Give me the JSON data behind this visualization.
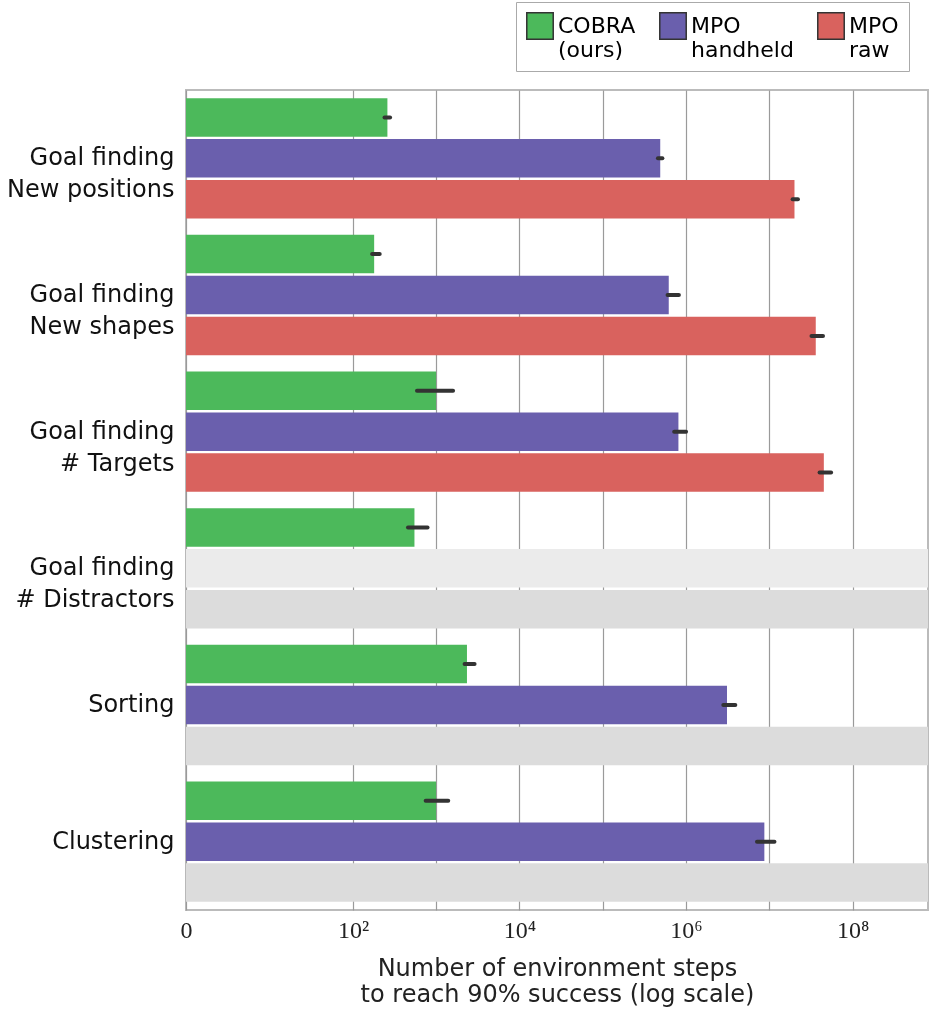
{
  "chart_data": {
    "type": "bar",
    "orientation": "horizontal",
    "log": "x",
    "xlabel": "Number of environment steps\nto reach 90% success (log scale)",
    "categories": [
      "Goal finding\nNew positions",
      "Goal finding\nNew shapes",
      "Goal finding\n# Targets",
      "Goal finding\n# Distractors",
      "Sorting",
      "Clustering"
    ],
    "series": [
      {
        "name": "COBRA\n(ours)",
        "color": "#4cb95b",
        "values": [
          260,
          180,
          1000,
          550,
          2350,
          1000
        ],
        "errors": [
          [
            240,
            280
          ],
          [
            170,
            210
          ],
          [
            590,
            1600
          ],
          [
            460,
            790
          ],
          [
            2200,
            2900
          ],
          [
            750,
            1400
          ]
        ]
      },
      {
        "name": "MPO\nhandheld",
        "color": "#6a5fad",
        "values": [
          490000,
          620000,
          810000,
          800000000,
          3100000,
          8700000
        ],
        "colors": [
          "#6a5fad",
          "#6a5fad",
          "#6a5fad",
          "#ebebeb",
          "#6a5fad",
          "#6a5fad"
        ],
        "errors": [
          [
            460000,
            520000
          ],
          [
            600000,
            820000
          ],
          [
            720000,
            1000000
          ],
          null,
          [
            2800000,
            3900000
          ],
          [
            7100000,
            11500000
          ]
        ]
      },
      {
        "name": "MPO\nraw",
        "color": "#d9625e",
        "values": [
          20000000,
          36000000,
          45000000,
          800000000,
          800000000,
          800000000
        ],
        "colors": [
          "#d9625e",
          "#d9625e",
          "#d9625e",
          "#dcdcdc",
          "#dcdcdc",
          "#dcdcdc"
        ],
        "errors": [
          [
            19000000,
            22000000
          ],
          [
            32000000,
            44000000
          ],
          [
            40000000,
            55000000
          ],
          null,
          null,
          null
        ]
      }
    ],
    "xlim": [
      0,
      800000000
    ],
    "xticks": [
      0,
      {
        "value": 100,
        "label": "10²"
      },
      {
        "value": 1000,
        "label": null
      },
      {
        "value": 10000,
        "label": "10⁴"
      },
      {
        "value": 100000,
        "label": null
      },
      {
        "value": 1000000,
        "label": "10⁶"
      },
      {
        "value": 10000000,
        "label": null
      },
      {
        "value": 100000000,
        "label": "10⁸"
      }
    ],
    "grid": "x",
    "legend": "top right"
  }
}
